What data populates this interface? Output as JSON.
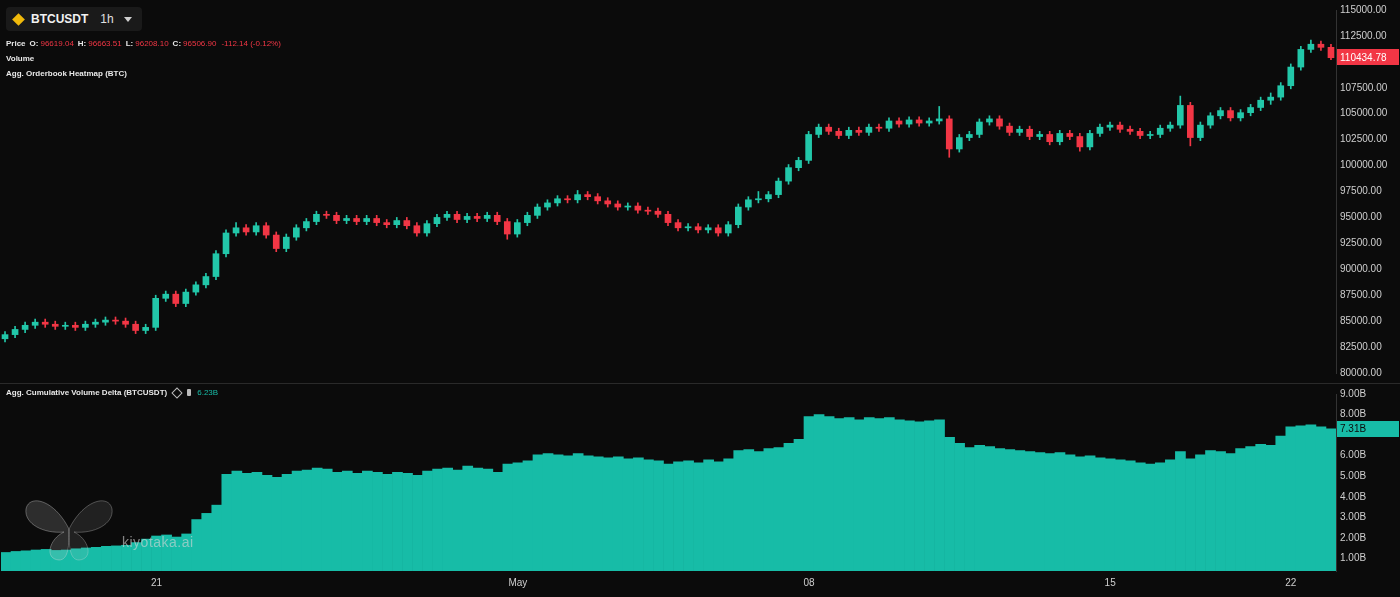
{
  "chart_data": [
    {
      "type": "candlestick",
      "title": "BTCUSDT",
      "interval": "1h",
      "legend_label": "Price",
      "ohlc_readout": [
        {
          "label": "O:",
          "value": "96619.04"
        },
        {
          "label": "H:",
          "value": "96663.51"
        },
        {
          "label": "L:",
          "value": "96208.10"
        },
        {
          "label": "C:",
          "value": "96506.90"
        }
      ],
      "change": "-112.14 (-0.12%)",
      "indicators": [
        "Volume",
        "Agg. Orderbook Heatmap (BTC)"
      ],
      "categories": [
        null,
        null,
        null,
        null,
        null,
        null,
        null,
        null,
        null,
        null,
        null,
        null,
        null,
        null,
        null,
        "21",
        null,
        null,
        null,
        null,
        null,
        null,
        null,
        null,
        null,
        null,
        null,
        null,
        null,
        null,
        null,
        null,
        null,
        null,
        null,
        null,
        null,
        null,
        null,
        null,
        null,
        null,
        null,
        null,
        null,
        null,
        null,
        null,
        null,
        null,
        null,
        "May",
        null,
        null,
        null,
        null,
        null,
        null,
        null,
        null,
        null,
        null,
        null,
        null,
        null,
        null,
        null,
        null,
        null,
        null,
        null,
        null,
        null,
        null,
        null,
        null,
        null,
        null,
        null,
        null,
        "08",
        null,
        null,
        null,
        null,
        null,
        null,
        null,
        null,
        null,
        null,
        null,
        null,
        null,
        null,
        null,
        null,
        null,
        null,
        null,
        null,
        null,
        null,
        null,
        null,
        null,
        null,
        null,
        null,
        null,
        "15",
        null,
        null,
        null,
        null,
        null,
        null,
        null,
        null,
        null,
        null,
        null,
        null,
        null,
        null,
        null,
        null,
        null,
        "22",
        null,
        null,
        null,
        null
      ],
      "open": [
        83300,
        83700,
        84200,
        84600,
        84900,
        84700,
        84500,
        84600,
        84400,
        84700,
        84900,
        85100,
        85000,
        84700,
        84100,
        84400,
        87200,
        87600,
        86700,
        87800,
        88500,
        89300,
        91500,
        93500,
        94000,
        93600,
        94200,
        93300,
        92000,
        93100,
        94000,
        94600,
        95300,
        95200,
        94700,
        94900,
        94600,
        94900,
        94500,
        94300,
        94700,
        94200,
        93500,
        94400,
        95000,
        95300,
        94800,
        95100,
        94900,
        95200,
        94600,
        93400,
        94500,
        95200,
        96000,
        96400,
        96800,
        96700,
        97200,
        97000,
        96600,
        96300,
        96000,
        96100,
        95700,
        95600,
        95300,
        94500,
        94000,
        94100,
        93800,
        94000,
        93500,
        94300,
        96000,
        96700,
        96800,
        97200,
        98500,
        99800,
        100500,
        103000,
        103700,
        103300,
        102900,
        103400,
        103200,
        103700,
        103600,
        104300,
        104000,
        104400,
        104100,
        104300,
        104500,
        101600,
        102700,
        103000,
        104200,
        104500,
        103800,
        103200,
        103500,
        102800,
        103000,
        102300,
        103100,
        102800,
        101800,
        103100,
        103700,
        103900,
        103500,
        103300,
        102900,
        103000,
        103600,
        103900,
        105800,
        102700,
        103900,
        104800,
        105300,
        104600,
        105100,
        105600,
        106300,
        106600,
        107700,
        109500,
        111200,
        111700,
        111400
      ],
      "high": [
        84000,
        84500,
        84900,
        85200,
        85200,
        85000,
        84900,
        84900,
        85000,
        85200,
        85400,
        85400,
        85300,
        85000,
        84700,
        87500,
        87900,
        87900,
        88100,
        88800,
        89600,
        91800,
        93800,
        94500,
        94300,
        94500,
        94500,
        93600,
        93400,
        94300,
        94900,
        95600,
        95600,
        95500,
        95200,
        95200,
        95200,
        95200,
        94800,
        95000,
        95000,
        94500,
        94700,
        95300,
        95600,
        95600,
        95400,
        95400,
        95500,
        95500,
        94900,
        94800,
        95500,
        96300,
        96700,
        97100,
        97100,
        97600,
        97500,
        97300,
        96900,
        96600,
        96400,
        96400,
        96000,
        95900,
        95600,
        94800,
        94400,
        94400,
        94300,
        94300,
        94600,
        96300,
        97000,
        97500,
        97500,
        98800,
        100100,
        100800,
        103300,
        104000,
        104000,
        103600,
        103700,
        103700,
        104000,
        104000,
        104600,
        104600,
        104700,
        104700,
        104600,
        105700,
        104800,
        103000,
        103300,
        104500,
        104800,
        104800,
        104100,
        103800,
        103800,
        103300,
        103300,
        103400,
        103400,
        103100,
        103400,
        104000,
        104200,
        104200,
        103800,
        103600,
        103300,
        103900,
        104200,
        106700,
        106100,
        104200,
        105100,
        105600,
        105600,
        105400,
        105900,
        106600,
        107000,
        108000,
        109800,
        111500,
        112100,
        112000,
        111700
      ],
      "low": [
        83000,
        83400,
        83900,
        84300,
        84400,
        84200,
        84200,
        84100,
        84100,
        84400,
        84600,
        84700,
        84400,
        83800,
        83800,
        84100,
        86900,
        86400,
        86400,
        87500,
        88200,
        89000,
        91200,
        93200,
        93300,
        93300,
        93000,
        91700,
        91700,
        92800,
        93700,
        94300,
        94900,
        94400,
        94400,
        94300,
        94300,
        94200,
        94000,
        94000,
        93900,
        93200,
        93200,
        94100,
        94700,
        94500,
        94500,
        94600,
        94600,
        94300,
        92900,
        93100,
        94200,
        94900,
        95700,
        96100,
        96400,
        96400,
        96700,
        96300,
        96000,
        95700,
        95700,
        95400,
        95300,
        95000,
        94200,
        93700,
        93700,
        93500,
        93500,
        93200,
        93200,
        94000,
        95700,
        96400,
        96500,
        96900,
        98200,
        99500,
        100200,
        102700,
        103000,
        102600,
        102600,
        102900,
        102900,
        103300,
        103300,
        103700,
        103700,
        103800,
        103800,
        104000,
        100800,
        101300,
        102400,
        102700,
        103900,
        103500,
        102900,
        102900,
        102500,
        102500,
        102000,
        102000,
        102500,
        101400,
        101500,
        102800,
        103400,
        103200,
        103000,
        102600,
        102600,
        102700,
        103300,
        103600,
        101900,
        102400,
        103600,
        104500,
        104300,
        104300,
        104800,
        105300,
        105900,
        106300,
        107400,
        109200,
        110900,
        111100,
        110200
      ],
      "close": [
        83700,
        84200,
        84600,
        84900,
        84700,
        84500,
        84600,
        84400,
        84700,
        84900,
        85100,
        85000,
        84700,
        84100,
        84400,
        87200,
        87600,
        86700,
        87800,
        88500,
        89300,
        91500,
        93500,
        94000,
        93600,
        94200,
        93300,
        92000,
        93100,
        94000,
        94600,
        95300,
        95200,
        94700,
        94900,
        94600,
        94900,
        94500,
        94300,
        94700,
        94200,
        93500,
        94400,
        95000,
        95300,
        94800,
        95100,
        94900,
        95200,
        94600,
        93400,
        94500,
        95200,
        96000,
        96400,
        96800,
        96700,
        97200,
        97000,
        96600,
        96300,
        96000,
        96100,
        95700,
        95600,
        95300,
        94500,
        94000,
        94100,
        93800,
        94000,
        93500,
        94300,
        96000,
        96700,
        96800,
        97200,
        98500,
        99800,
        100500,
        103000,
        103700,
        103300,
        102900,
        103400,
        103200,
        103700,
        103600,
        104300,
        104000,
        104400,
        104100,
        104300,
        104500,
        101600,
        102700,
        103000,
        104200,
        104500,
        103800,
        103200,
        103500,
        102800,
        103000,
        102300,
        103100,
        102800,
        101800,
        103100,
        103700,
        103900,
        103500,
        103300,
        102900,
        103000,
        103600,
        103900,
        105800,
        102700,
        103900,
        104800,
        105300,
        104600,
        105100,
        105600,
        106300,
        106600,
        107700,
        109500,
        111200,
        111700,
        111400,
        110400
      ],
      "ylim": [
        80000,
        115000
      ],
      "yticks": [
        {
          "value": 80000,
          "label": "80000.00"
        },
        {
          "value": 82500,
          "label": "82500.00"
        },
        {
          "value": 85000,
          "label": "85000.00"
        },
        {
          "value": 87500,
          "label": "87500.00"
        },
        {
          "value": 90000,
          "label": "90000.00"
        },
        {
          "value": 92500,
          "label": "92500.00"
        },
        {
          "value": 95000,
          "label": "95000.00"
        },
        {
          "value": 97500,
          "label": "97500.00"
        },
        {
          "value": 100000,
          "label": "100000.00"
        },
        {
          "value": 102500,
          "label": "102500.00"
        },
        {
          "value": 105000,
          "label": "105000.00"
        },
        {
          "value": 107500,
          "label": "107500.00"
        },
        {
          "value": 112500,
          "label": "112500.00"
        },
        {
          "value": 115000,
          "label": "115000.00"
        }
      ],
      "last_price": {
        "value": 110434.78,
        "label": "110434.78"
      },
      "grid": false,
      "tick_labels": "y"
    },
    {
      "type": "bar",
      "title": "Agg. Cumulative Volume Delta (BTCUSDT)",
      "readout": "6.23B",
      "categories": [
        null,
        null,
        null,
        null,
        null,
        null,
        null,
        null,
        null,
        null,
        null,
        null,
        null,
        null,
        null,
        "21",
        null,
        null,
        null,
        null,
        null,
        null,
        null,
        null,
        null,
        null,
        null,
        null,
        null,
        null,
        null,
        null,
        null,
        null,
        null,
        null,
        null,
        null,
        null,
        null,
        null,
        null,
        null,
        null,
        null,
        null,
        null,
        null,
        null,
        null,
        null,
        "May",
        null,
        null,
        null,
        null,
        null,
        null,
        null,
        null,
        null,
        null,
        null,
        null,
        null,
        null,
        null,
        null,
        null,
        null,
        null,
        null,
        null,
        null,
        null,
        null,
        null,
        null,
        null,
        null,
        "08",
        null,
        null,
        null,
        null,
        null,
        null,
        null,
        null,
        null,
        null,
        null,
        null,
        null,
        null,
        null,
        null,
        null,
        null,
        null,
        null,
        null,
        null,
        null,
        null,
        null,
        null,
        null,
        null,
        null,
        "15",
        null,
        null,
        null,
        null,
        null,
        null,
        null,
        null,
        null,
        null,
        null,
        null,
        null,
        null,
        null,
        null,
        null,
        "22",
        null,
        null,
        null,
        null
      ],
      "values": [
        1.3,
        1.35,
        1.38,
        1.42,
        1.45,
        1.4,
        1.42,
        1.48,
        1.52,
        1.55,
        1.6,
        1.62,
        1.65,
        1.78,
        1.95,
        2.1,
        2.15,
        2.05,
        2.2,
        2.9,
        3.2,
        3.6,
        5.1,
        5.25,
        5.15,
        5.2,
        5.05,
        4.95,
        5.1,
        5.25,
        5.3,
        5.4,
        5.35,
        5.2,
        5.25,
        5.15,
        5.25,
        5.2,
        5.1,
        5.2,
        5.15,
        5.05,
        5.25,
        5.35,
        5.4,
        5.3,
        5.5,
        5.4,
        5.35,
        5.2,
        5.6,
        5.65,
        5.75,
        6.05,
        6.1,
        6.05,
        6.0,
        6.1,
        6.0,
        5.95,
        5.9,
        5.95,
        5.85,
        5.9,
        5.8,
        5.75,
        5.6,
        5.7,
        5.75,
        5.65,
        5.8,
        5.7,
        5.85,
        6.25,
        6.3,
        6.2,
        6.35,
        6.4,
        6.6,
        6.8,
        7.9,
        8.0,
        7.9,
        7.8,
        7.85,
        7.75,
        7.85,
        7.8,
        7.85,
        7.75,
        7.7,
        7.65,
        7.7,
        7.75,
        6.9,
        6.6,
        6.4,
        6.5,
        6.45,
        6.35,
        6.3,
        6.25,
        6.2,
        6.15,
        6.1,
        6.15,
        6.05,
        5.95,
        6.0,
        5.9,
        5.85,
        5.8,
        5.75,
        5.65,
        5.6,
        5.65,
        5.8,
        6.2,
        5.85,
        6.05,
        6.25,
        6.2,
        6.1,
        6.35,
        6.45,
        6.55,
        6.5,
        6.95,
        7.4,
        7.45,
        7.5,
        7.4,
        7.31
      ],
      "color": "#17bca7",
      "ylim": [
        0.4,
        9
      ],
      "yticks": [
        {
          "value": 1,
          "label": "1.00B"
        },
        {
          "value": 2,
          "label": "2.00B"
        },
        {
          "value": 3,
          "label": "3.00B"
        },
        {
          "value": 4,
          "label": "4.00B"
        },
        {
          "value": 5,
          "label": "5.00B"
        },
        {
          "value": 6,
          "label": "6.00B"
        },
        {
          "value": 8,
          "label": "8.00B"
        },
        {
          "value": 9,
          "label": "9.00B"
        }
      ],
      "last_value": {
        "value": 7.31,
        "label": "7.31B"
      },
      "grid": false,
      "watermark": "kiyotaka.ai"
    }
  ]
}
